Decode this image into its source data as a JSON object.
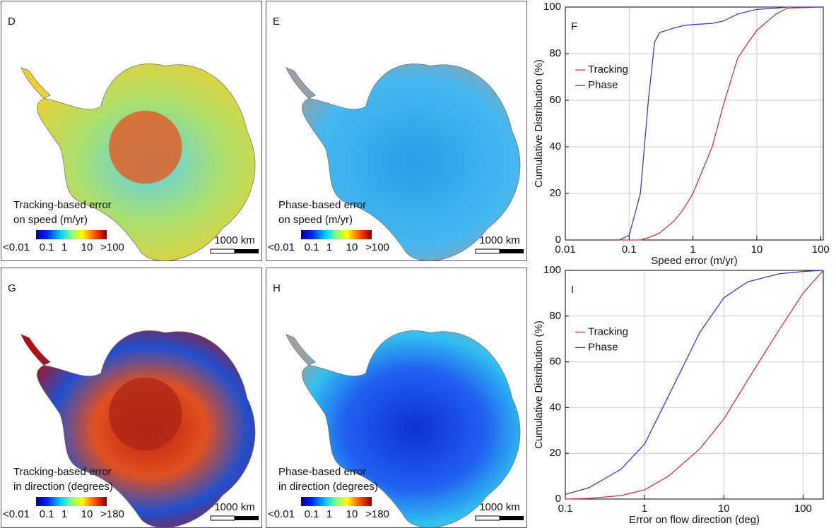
{
  "maps": [
    {
      "letter": "D",
      "caption": [
        "Tracking-based error",
        "on speed (m/yr)"
      ],
      "colorbar": [
        "<0.01",
        "0.1",
        "1",
        "10",
        ">100"
      ],
      "scale": "1000 km"
    },
    {
      "letter": "E",
      "caption": [
        "Phase-based error",
        "on speed (m/yr)"
      ],
      "colorbar": [
        "<0.01",
        "0.1",
        "1",
        "10",
        ">100"
      ],
      "scale": "1000 km"
    },
    {
      "letter": "G",
      "caption": [
        "Tracking-based error",
        "in direction (degrees)"
      ],
      "colorbar": [
        "<0.01",
        "0.1",
        "1",
        "10",
        ">180"
      ],
      "scale": "1000 km"
    },
    {
      "letter": "H",
      "caption": [
        "Phase-based error",
        "in direction (degrees)"
      ],
      "colorbar": [
        "<0.01",
        "0.1",
        "1",
        "10",
        ">180"
      ],
      "scale": "1000 km"
    }
  ],
  "chart_data": [
    {
      "type": "line",
      "title": "F",
      "x_label": "Speed error (m/yr)",
      "y_label": "Cumulative Distribution (%)",
      "x": [
        0.07,
        0.1,
        0.15,
        0.2,
        0.25,
        0.3,
        0.5,
        0.7,
        1,
        2,
        3,
        5,
        7,
        10,
        20,
        30,
        100
      ],
      "series": [
        {
          "name": "Tracking",
          "color": "#c0393b",
          "values": [
            0,
            0,
            0,
            1,
            2,
            3,
            8,
            13,
            20,
            40,
            58,
            78,
            84,
            90,
            97,
            99.5,
            100
          ]
        },
        {
          "name": "Phase",
          "color": "#3b3bc0",
          "values": [
            0,
            2,
            20,
            60,
            85,
            89,
            91,
            92,
            92.5,
            93,
            94,
            97,
            98,
            99,
            99.5,
            100,
            100
          ]
        }
      ],
      "xscale": "log",
      "xlim": [
        0.01,
        110
      ],
      "xticks": [
        0.01,
        0.1,
        1,
        10,
        100
      ],
      "ylim": [
        0,
        100
      ],
      "yticks": [
        0,
        20,
        40,
        60,
        80,
        100
      ],
      "grid": true,
      "legend": "upper left"
    },
    {
      "type": "line",
      "title": "I",
      "x_label": "Error on flow direction (deg)",
      "y_label": "Cumulative Distribution (%)",
      "x": [
        0.1,
        0.2,
        0.5,
        1,
        2,
        5,
        10,
        20,
        50,
        100,
        180
      ],
      "series": [
        {
          "name": "Tracking",
          "color": "#c0393b",
          "values": [
            0,
            0.3,
            1.5,
            4,
            10,
            22,
            35,
            52,
            74,
            90,
            100
          ]
        },
        {
          "name": "Phase",
          "color": "#3b3bc0",
          "values": [
            2,
            5,
            13,
            24,
            45,
            73,
            88,
            95,
            98.5,
            99.5,
            100
          ]
        }
      ],
      "xscale": "log",
      "xlim": [
        0.1,
        180
      ],
      "xticks": [
        0.1,
        1,
        10,
        100
      ],
      "ylim": [
        0,
        100
      ],
      "yticks": [
        0,
        20,
        40,
        60,
        80,
        100
      ],
      "grid": true,
      "legend": "upper left"
    }
  ]
}
